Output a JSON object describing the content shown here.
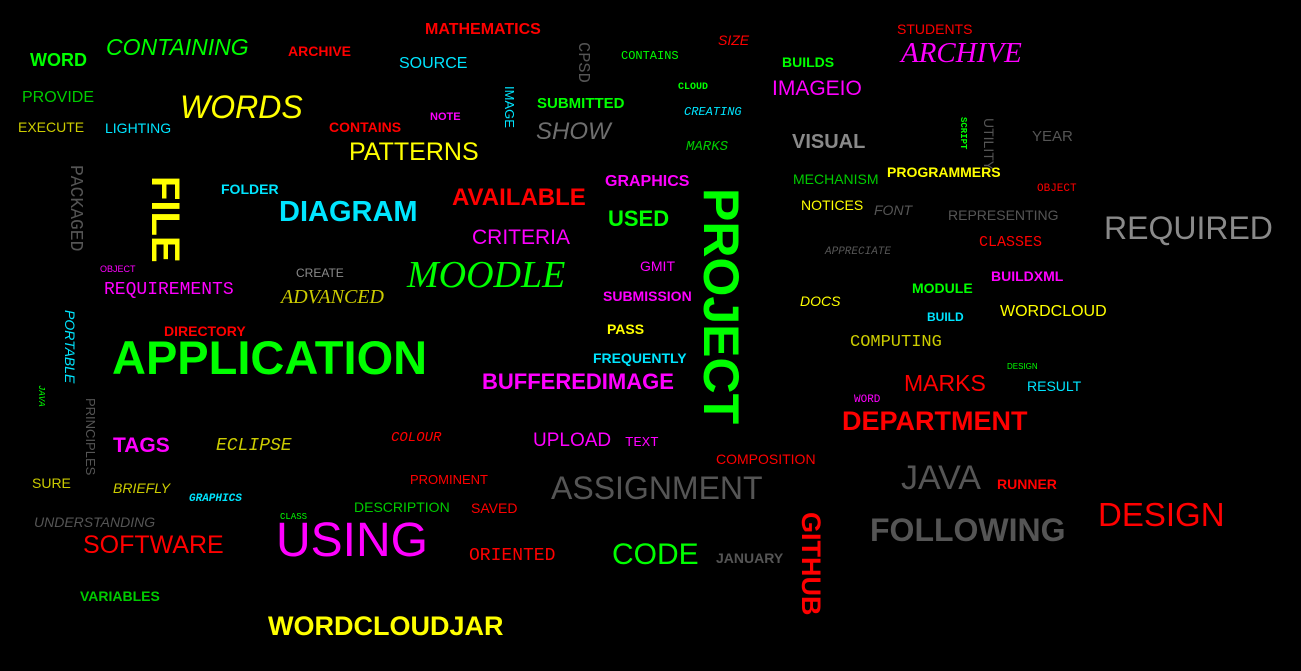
{
  "words": {
    "mathematics": "MATHEMATICS",
    "students": "STUDENTS",
    "word1": "WORD",
    "containing": "CONTAINING",
    "archive1": "ARCHIVE",
    "source": "SOURCE",
    "cpsd": "CPSD",
    "contains1": "CONTAINS",
    "size": "SIZE",
    "builds": "BUILDS",
    "archive2": "ARCHIVE",
    "provide": "PROVIDE",
    "image": "IMAGE",
    "cloud": "CLOUD",
    "imageio": "IMAGEIO",
    "words": "WORDS",
    "submitted": "SUBMITTED",
    "creating": "CREATING",
    "execute": "EXECUTE",
    "lighting": "LIGHTING",
    "note": "NOTE",
    "contains2": "CONTAINS",
    "show": "SHOW",
    "script": "SCRIPT",
    "utility": "UTILITY",
    "year": "YEAR",
    "visual": "VISUAL",
    "marks1": "MARKS",
    "patterns": "PATTERNS",
    "packaged": "PACKAGED",
    "file": "FILE",
    "mechanism": "MECHANISM",
    "programmers": "PROGRAMMERS",
    "graphics1": "GRAPHICS",
    "folder": "FOLDER",
    "object1": "OBJECT",
    "available": "AVAILABLE",
    "project": "PROJECT",
    "notices": "NOTICES",
    "font": "FONT",
    "representing": "REPRESENTING",
    "diagram": "DIAGRAM",
    "used": "USED",
    "required": "REQUIRED",
    "criteria": "CRITERIA",
    "classes": "CLASSES",
    "appreciate": "APPRECIATE",
    "object2": "OBJECT",
    "create": "CREATE",
    "moodle": "MOODLE",
    "gmit": "GMIT",
    "buildxml": "BUILDXML",
    "requirements": "REQUIREMENTS",
    "advanced": "ADVANCED",
    "submission": "SUBMISSION",
    "module": "MODULE",
    "docs": "DOCS",
    "portable": "PORTABLE",
    "build": "BUILD",
    "wordcloud": "WORDCLOUD",
    "directory": "DIRECTORY",
    "pass": "PASS",
    "application": "APPLICATION",
    "computing": "COMPUTING",
    "frequently": "FREQUENTLY",
    "design1": "DESIGN",
    "bufferedimage": "BUFFEREDIMAGE",
    "marks2": "MARKS",
    "result": "RESULT",
    "java1": "JAVA",
    "principles": "PRINCIPLES",
    "word2": "WORD",
    "department": "DEPARTMENT",
    "tags": "TAGS",
    "eclipse": "ECLIPSE",
    "colour": "COLOUR",
    "upload": "UPLOAD",
    "text": "TEXT",
    "composition": "COMPOSITION",
    "java2": "JAVA",
    "prominent": "PROMINENT",
    "sure": "SURE",
    "briefly": "BRIEFLY",
    "assignment": "ASSIGNMENT",
    "runner": "RUNNER",
    "graphics2": "GRAPHICS",
    "description": "DESCRIPTION",
    "saved": "SAVED",
    "design2": "DESIGN",
    "understanding": "UNDERSTANDING",
    "class": "CLASS",
    "github": "GITHUB",
    "following": "FOLLOWING",
    "software": "SOFTWARE",
    "using": "USING",
    "oriented": "ORIENTED",
    "code": "CODE",
    "january": "JANUARY",
    "variables": "VARIABLES",
    "wordcloudjar": "WORDCLOUDJAR"
  },
  "colors": {
    "background": "#000000",
    "green": "#00ff00",
    "red": "#ff0000",
    "yellow": "#ffff00",
    "cyan": "#00e5ff",
    "magenta": "#ff00ff",
    "gray": "#6e6e6e"
  }
}
